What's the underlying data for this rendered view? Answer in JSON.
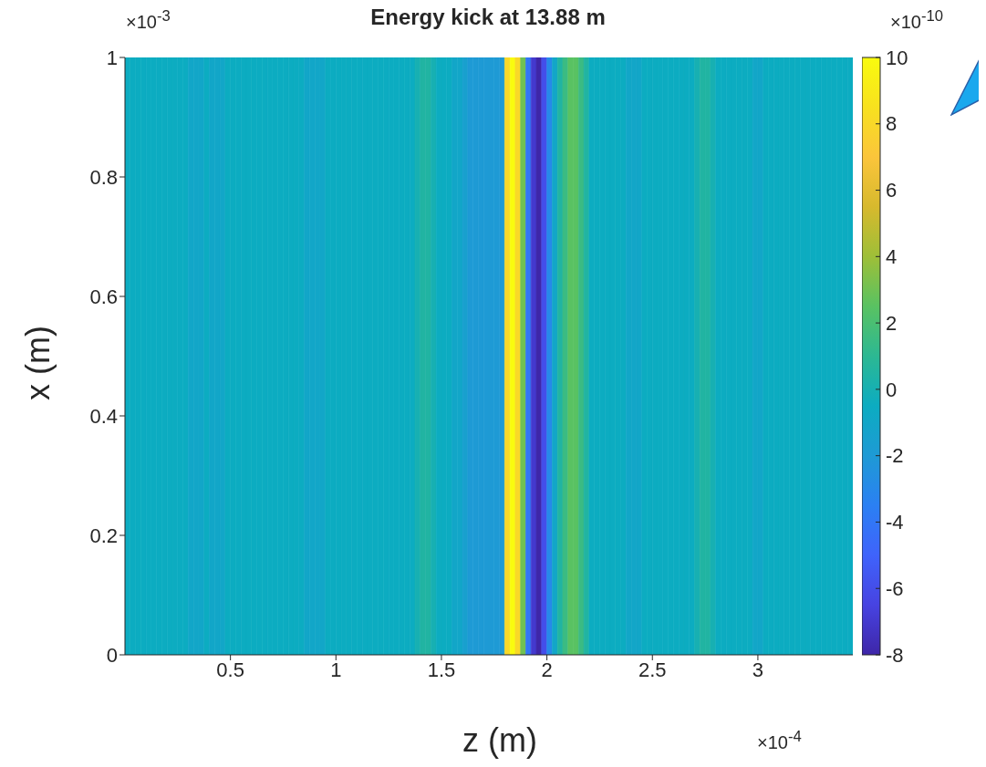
{
  "chart_data": {
    "type": "heatmap",
    "title": "Energy kick at 13.88 m",
    "xlabel": "z (m)",
    "ylabel": "x (m)",
    "annotations": [
      "×10$^{-3}$",
      "×10$^{-4}$",
      "×10$^{-10}$"
    ],
    "x": [
      0.0125,
      0.0375,
      0.0625,
      0.0875,
      0.1125,
      0.1375,
      0.1625,
      0.1875,
      0.2125,
      0.2375,
      0.2625,
      0.2875,
      0.3125,
      0.3375,
      0.3625,
      0.3875,
      0.4125,
      0.4375,
      0.4625,
      0.4875,
      0.5125,
      0.5375,
      0.5625,
      0.5875,
      0.6125,
      0.6375,
      0.6625,
      0.6875,
      0.7125,
      0.7375,
      0.7625,
      0.7875,
      0.8125,
      0.8375,
      0.8625,
      0.8875,
      0.9125,
      0.9375,
      0.9625,
      0.9875,
      1.0125,
      1.0375,
      1.0625,
      1.0875,
      1.1125,
      1.1375,
      1.1625,
      1.1875,
      1.2125,
      1.2375,
      1.2625,
      1.2875,
      1.3125,
      1.3375,
      1.3625,
      1.3875,
      1.4125,
      1.4375,
      1.4625,
      1.4875,
      1.5125,
      1.5375,
      1.5625,
      1.5875,
      1.6125,
      1.6375,
      1.6625,
      1.6875,
      1.7125,
      1.7375,
      1.7625,
      1.7875,
      1.8125,
      1.8375,
      1.8625,
      1.8875,
      1.9125,
      1.9375,
      1.9625,
      1.9875,
      2.0125,
      2.0375,
      2.0625,
      2.0875,
      2.1125,
      2.1375,
      2.1625,
      2.1875,
      2.2125,
      2.2375,
      2.2625,
      2.2875,
      2.3125,
      2.3375,
      2.3625,
      2.3875,
      2.4125,
      2.4375,
      2.4625,
      2.4875,
      2.5125,
      2.5375,
      2.5625,
      2.5875,
      2.6125,
      2.6375,
      2.6625,
      2.6875,
      2.7125,
      2.7375,
      2.7625,
      2.7875,
      2.8125,
      2.8375,
      2.8625,
      2.8875,
      2.9125,
      2.9375,
      2.9625,
      2.9875,
      3.0125,
      3.0375,
      3.0625,
      3.0875,
      3.1125,
      3.1375,
      3.1625,
      3.1875,
      3.2125,
      3.2375,
      3.2625,
      3.2875,
      3.3125,
      3.3375,
      3.3625,
      3.3875,
      3.4125,
      3.4375
    ],
    "cells": [
      [
        -0.5,
        -0.5,
        -0.5,
        -0.5,
        -0.5,
        -0.5,
        -0.5,
        -0.5,
        -0.5,
        -0.5,
        -0.5,
        -0.5,
        -1,
        -1,
        -1,
        -0.5,
        -1,
        -1,
        -1,
        -0.5,
        -0.5,
        -0.5,
        -0.5,
        -0.5,
        -0.5,
        -0.5,
        -0.5,
        -0.5,
        -0.5,
        -0.5,
        -0.5,
        -0.5,
        -0.5,
        -0.5,
        -1,
        -1,
        -1,
        -1,
        -0.5,
        -0.5,
        -0.5,
        -0.5,
        -0.5,
        -0.5,
        -0.5,
        -0.5,
        -0.5,
        -0.5,
        -0.5,
        -0.5,
        -0.5,
        -0.5,
        -0.5,
        -0.5,
        -0.5,
        0,
        0.5,
        0.5,
        0,
        -0.5,
        -0.5,
        -0.5,
        -1,
        -1,
        -1.5,
        -2,
        -2,
        -2,
        -2,
        -2,
        -2,
        -2,
        8,
        10,
        8,
        3,
        -4,
        -7,
        -8,
        -6,
        -3,
        -1,
        0.5,
        1.5,
        2.5,
        2.5,
        1.5,
        0.5,
        -0.5,
        -0.5,
        -0.5,
        -0.5,
        -0.5,
        -0.5,
        -0.5,
        -1,
        -1,
        -1,
        -0.5,
        -0.5,
        -0.5,
        -0.5,
        -0.5,
        -0.5,
        -0.5,
        -0.5,
        -0.5,
        -0.5,
        0,
        0.5,
        0.5,
        0,
        -0.5,
        -0.5,
        -0.5,
        -0.5,
        -0.5,
        -0.5,
        -0.5,
        -1,
        -1,
        -0.5,
        -0.5,
        -0.5,
        -0.5,
        -0.5,
        -0.5,
        -0.5,
        -0.5,
        -0.5,
        -0.5,
        -0.5,
        -0.5,
        -0.5,
        -0.5,
        -0.5,
        -0.5,
        -0.5
      ]
    ],
    "xlim": [
      0,
      3.45
    ],
    "xticks": [
      0.5,
      1,
      1.5,
      2,
      2.5,
      3
    ],
    "ylim": [
      0,
      1
    ],
    "yticks": [
      0,
      0.2,
      0.4,
      0.6,
      0.8,
      1
    ],
    "clim": [
      -8,
      10
    ],
    "cticks": [
      -8,
      -6,
      -4,
      -2,
      0,
      2,
      4,
      6,
      8,
      10
    ]
  }
}
